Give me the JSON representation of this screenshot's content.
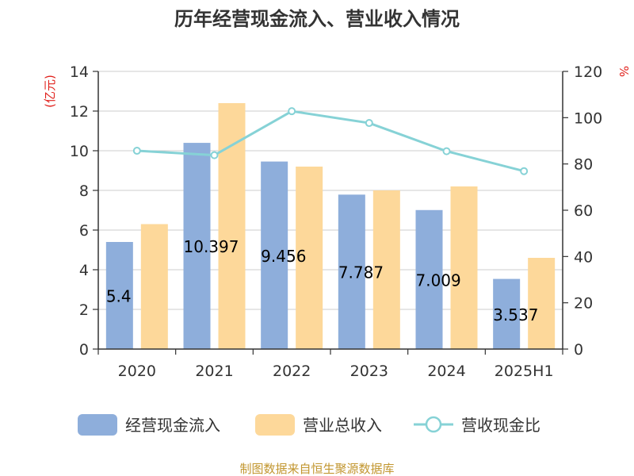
{
  "chart_data": {
    "type": "bar",
    "title": "历年经营现金流入、营业收入情况",
    "categories": [
      "2020",
      "2021",
      "2022",
      "2023",
      "2024",
      "2025H1"
    ],
    "y_left": {
      "unit": "(亿元)",
      "min": 0,
      "max": 14,
      "ticks": [
        0,
        2,
        4,
        6,
        8,
        10,
        12,
        14
      ]
    },
    "y_right": {
      "unit": "%",
      "min": 0,
      "max": 120,
      "ticks": [
        0,
        20,
        40,
        60,
        80,
        100,
        120
      ]
    },
    "series": [
      {
        "name": "经营现金流入",
        "type": "bar",
        "axis": "left",
        "color": "#8eaedb",
        "values": [
          5.4,
          10.397,
          9.456,
          7.787,
          7.009,
          3.537
        ],
        "labels": [
          "5.4",
          "10.397",
          "9.456",
          "7.787",
          "7.009",
          "3.537"
        ]
      },
      {
        "name": "营业总收入",
        "type": "bar",
        "axis": "left",
        "color": "#fdd89a",
        "values": [
          6.3,
          12.4,
          9.2,
          8.0,
          8.2,
          4.6
        ]
      },
      {
        "name": "营收现金比",
        "type": "line",
        "axis": "right",
        "color": "#86d2d6",
        "values": [
          85.7,
          83.8,
          102.8,
          97.7,
          85.5,
          76.9
        ]
      }
    ],
    "grid": true,
    "legend_position": "bottom"
  },
  "source": "制图数据来自恒生聚源数据库"
}
